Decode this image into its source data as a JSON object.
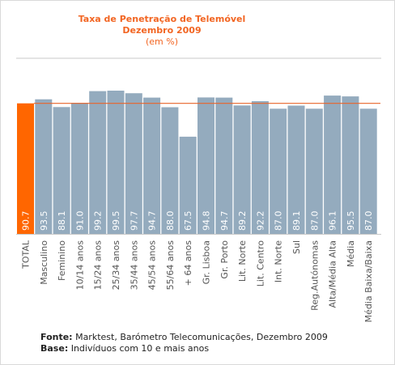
{
  "chart_data": {
    "type": "bar",
    "title": "Taxa de Penetração de Telemóvel",
    "subtitle": "Dezembro 2009",
    "unit_note": "(em %)",
    "categories": [
      "TOTAL",
      "Masculino",
      "Feminino",
      "10/14 anos",
      "15/24 anos",
      "25/34 anos",
      "35/44 anos",
      "45/54 anos",
      "55/64 anos",
      "+ 64 anos",
      "Gr. Lisboa",
      "Gr. Porto",
      "Lit. Norte",
      "Lit. Centro",
      "Int. Norte",
      "Sul",
      "Reg.Autónomas",
      "Alta/Média Alta",
      "Média",
      "Média Baixa/Baixa"
    ],
    "values": [
      90.7,
      93.5,
      88.1,
      91.0,
      99.2,
      99.5,
      97.7,
      94.7,
      88.0,
      67.5,
      94.8,
      94.7,
      89.2,
      92.2,
      87.0,
      89.1,
      87.0,
      96.1,
      95.5,
      87.0
    ],
    "value_labels": [
      "90.7",
      "93.5",
      "88.1",
      "91.0",
      "99.2",
      "99.5",
      "97.7",
      "94.7",
      "88.0",
      "67.5",
      "94.8",
      "94.7",
      "89.2",
      "92.2",
      "87.0",
      "89.1",
      "87.0",
      "96.1",
      "95.5",
      "87.0"
    ],
    "reference_line": 90.7,
    "highlight_index": 0,
    "colors": {
      "highlight": "#ff6600",
      "bar": "#94abbe",
      "line": "#e8642a",
      "label": "#ffffff",
      "axis": "#c8c8c8",
      "category_text": "#555555"
    }
  },
  "source": {
    "fonte_label": "Fonte:",
    "fonte_text": " Marktest, Barómetro Telecomunicações, Dezembro 2009",
    "base_label": "Base:",
    "base_text": " Indivíduos com 10 e mais anos"
  }
}
